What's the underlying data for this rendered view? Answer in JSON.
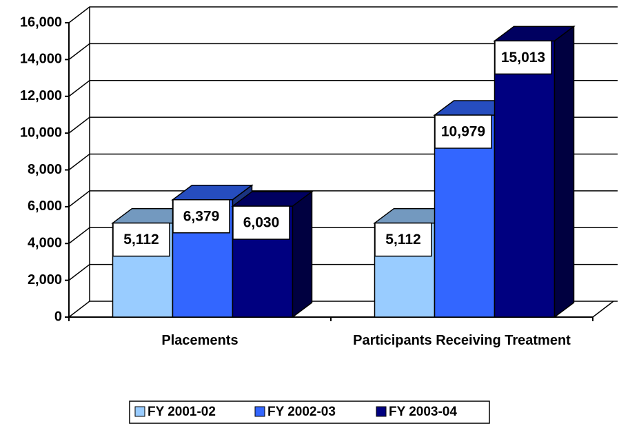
{
  "chart_data": {
    "type": "bar3d",
    "categories": [
      "Placements",
      "Participants Receiving Treatment"
    ],
    "series": [
      {
        "name": "FY 2001-02",
        "color": "#99ccff",
        "values": [
          5112,
          5112
        ],
        "value_labels": [
          "5,112",
          "5,112"
        ]
      },
      {
        "name": "FY 2002-03",
        "color": "#3366ff",
        "values": [
          6379,
          10979
        ],
        "value_labels": [
          "6,379",
          "10,979"
        ]
      },
      {
        "name": "FY 2003-04",
        "color": "#000080",
        "values": [
          6030,
          15013
        ],
        "value_labels": [
          "6,030",
          "15,013"
        ]
      }
    ],
    "ylim": [
      0,
      16000
    ],
    "yticks": [
      0,
      {
        "value": 2000,
        "label": "2,000"
      },
      {
        "value": 4000,
        "label": "4,000"
      },
      {
        "value": 6000,
        "label": "6,000"
      },
      {
        "value": 8000,
        "label": "8,000"
      },
      {
        "value": 10000,
        "label": "10,000"
      },
      {
        "value": 12000,
        "label": "12,000"
      },
      {
        "value": 14000,
        "label": "14,000"
      },
      {
        "value": 16000,
        "label": "16,000"
      }
    ],
    "grid": true,
    "legend": "bottom"
  }
}
